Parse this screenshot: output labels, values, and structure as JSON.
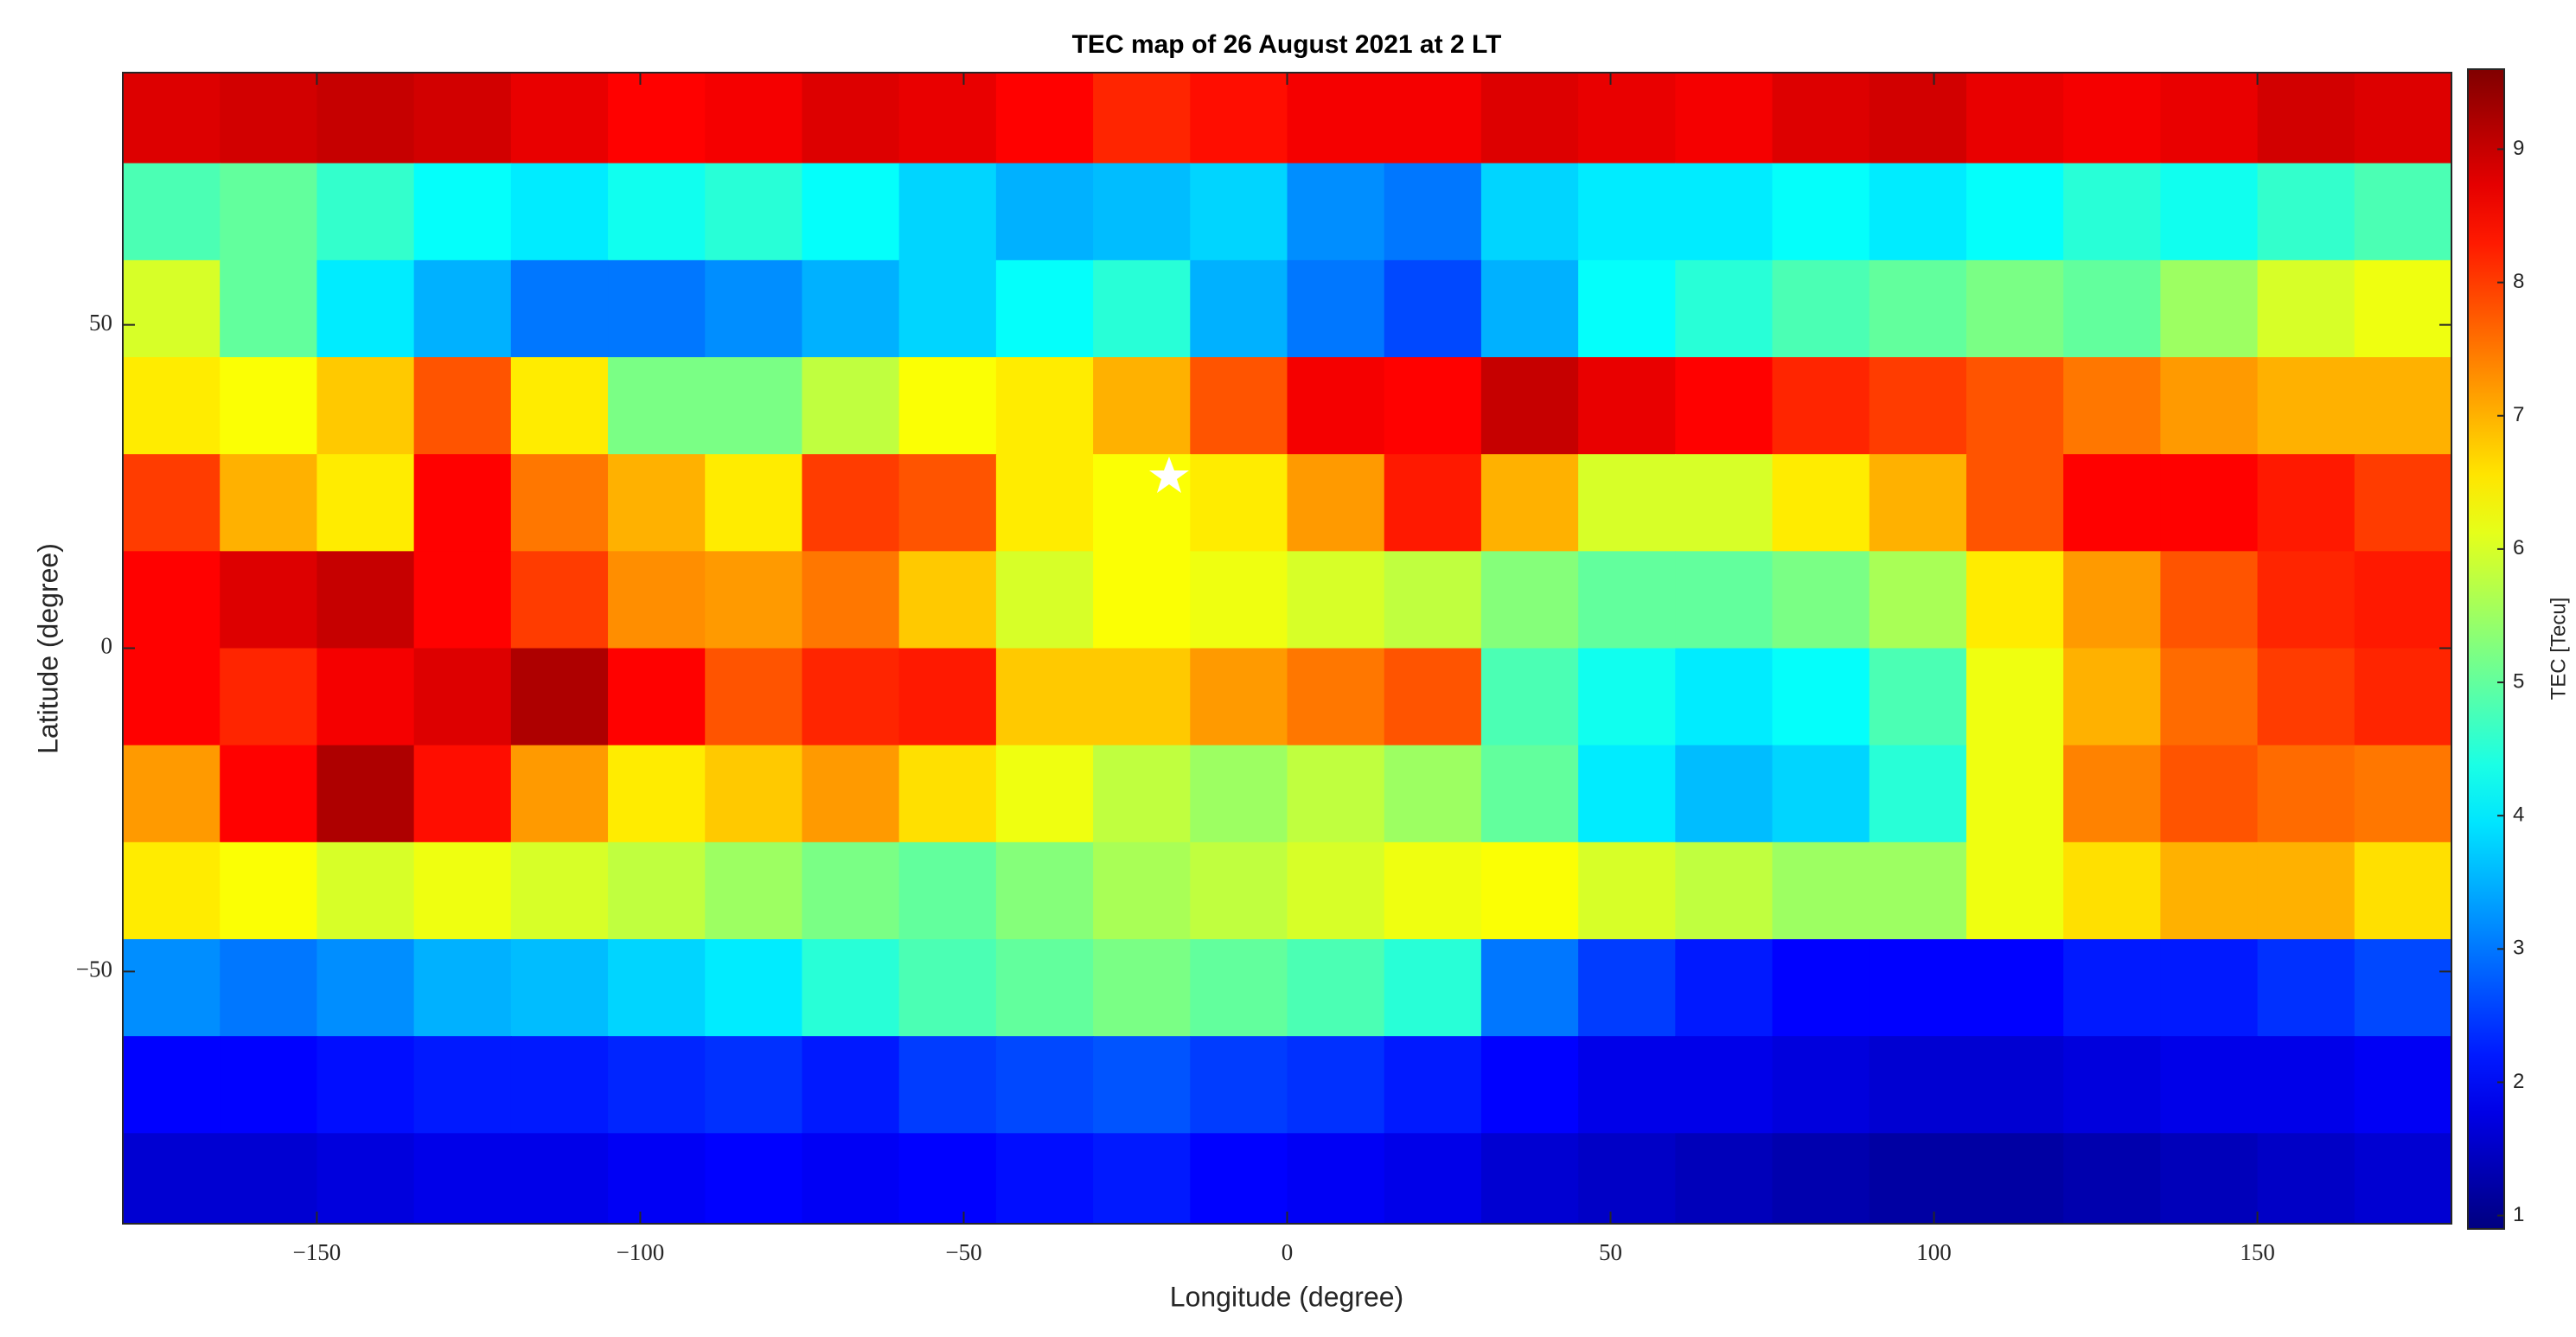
{
  "chart_data": {
    "type": "heatmap",
    "title": "TEC map of 26 August 2021 at 2 LT",
    "x_label": "Longitude (degree)",
    "y_label": "Latitude (degree)",
    "colorbar_label": "TEC [Tecu]",
    "colormap": "jet",
    "xlim": [
      -180,
      180
    ],
    "ylim": [
      -89,
      89
    ],
    "xticks": [
      {
        "value": -150,
        "label": "−150"
      },
      {
        "value": -100,
        "label": "−100"
      },
      {
        "value": -50,
        "label": "−50"
      },
      0,
      50,
      100,
      150
    ],
    "yticks": [
      {
        "value": -50,
        "label": "−50"
      },
      0,
      50
    ],
    "clim": [
      0.9,
      9.6
    ],
    "cticks": [
      1,
      2,
      3,
      4,
      5,
      6,
      7,
      8,
      9
    ],
    "x": [
      -172.5,
      -157.5,
      -142.5,
      -127.5,
      -112.5,
      -97.5,
      -82.5,
      -67.5,
      -52.5,
      -37.5,
      -22.5,
      -7.5,
      7.5,
      22.5,
      37.5,
      52.5,
      67.5,
      82.5,
      97.5,
      112.5,
      127.5,
      142.5,
      157.5,
      172.5
    ],
    "y": [
      82.5,
      67.5,
      52.5,
      37.5,
      22.5,
      7.5,
      -7.5,
      -22.5,
      -37.5,
      -52.5,
      -67.5,
      -82.5
    ],
    "z": [
      [
        8.8,
        8.9,
        9.0,
        8.9,
        8.7,
        8.5,
        8.6,
        8.8,
        8.7,
        8.5,
        8.2,
        8.4,
        8.6,
        8.6,
        8.8,
        8.7,
        8.6,
        8.8,
        8.9,
        8.7,
        8.6,
        8.7,
        8.9,
        8.8
      ],
      [
        4.8,
        5.0,
        4.6,
        4.2,
        4.0,
        4.3,
        4.5,
        4.2,
        3.8,
        3.5,
        3.6,
        3.8,
        3.2,
        3.0,
        3.8,
        4.0,
        4.0,
        4.2,
        4.0,
        4.2,
        4.5,
        4.3,
        4.6,
        4.8
      ],
      [
        6.0,
        5.0,
        4.0,
        3.5,
        3.0,
        3.0,
        3.2,
        3.5,
        3.8,
        4.2,
        4.5,
        3.5,
        3.0,
        2.6,
        3.5,
        4.2,
        4.5,
        4.8,
        5.0,
        5.2,
        5.0,
        5.5,
        6.0,
        6.2
      ],
      [
        6.5,
        6.3,
        6.8,
        7.8,
        6.5,
        5.2,
        5.2,
        5.8,
        6.3,
        6.5,
        7.0,
        7.8,
        8.6,
        8.5,
        9.0,
        8.7,
        8.5,
        8.2,
        8.0,
        7.8,
        7.5,
        7.2,
        7.0,
        7.0
      ],
      [
        8.0,
        7.0,
        6.5,
        8.5,
        7.5,
        7.0,
        6.5,
        8.0,
        7.8,
        6.5,
        6.3,
        6.5,
        7.2,
        8.3,
        7.0,
        6.0,
        6.0,
        6.5,
        7.0,
        7.8,
        8.5,
        8.5,
        8.3,
        8.0
      ],
      [
        8.5,
        8.8,
        9.0,
        8.5,
        8.0,
        7.3,
        7.2,
        7.5,
        6.8,
        6.0,
        6.3,
        6.2,
        6.0,
        5.8,
        5.3,
        5.0,
        5.0,
        5.2,
        5.6,
        6.5,
        7.2,
        7.8,
        8.2,
        8.3
      ],
      [
        8.5,
        8.2,
        8.6,
        8.8,
        9.2,
        8.5,
        7.8,
        8.2,
        8.3,
        6.8,
        6.8,
        7.2,
        7.5,
        7.8,
        4.8,
        4.3,
        4.0,
        4.2,
        4.8,
        6.2,
        7.0,
        7.6,
        8.0,
        8.2
      ],
      [
        7.2,
        8.5,
        9.2,
        8.4,
        7.2,
        6.5,
        6.8,
        7.2,
        6.6,
        6.2,
        5.8,
        5.5,
        5.8,
        5.5,
        5.0,
        4.0,
        3.6,
        3.8,
        4.5,
        6.2,
        7.4,
        7.8,
        7.6,
        7.5
      ],
      [
        6.5,
        6.3,
        6.0,
        6.2,
        6.0,
        5.8,
        5.5,
        5.2,
        5.0,
        5.3,
        5.6,
        5.8,
        6.0,
        6.2,
        6.3,
        6.0,
        5.8,
        5.5,
        5.5,
        6.2,
        6.6,
        7.0,
        7.0,
        6.6
      ],
      [
        3.2,
        3.0,
        3.2,
        3.5,
        3.6,
        3.8,
        4.0,
        4.5,
        4.8,
        5.0,
        5.2,
        5.0,
        4.8,
        4.5,
        3.0,
        2.5,
        2.2,
        2.0,
        2.0,
        2.0,
        2.2,
        2.2,
        2.4,
        2.6
      ],
      [
        2.0,
        2.0,
        2.1,
        2.2,
        2.2,
        2.3,
        2.4,
        2.2,
        2.5,
        2.6,
        2.7,
        2.5,
        2.4,
        2.2,
        2.0,
        1.8,
        1.8,
        1.7,
        1.6,
        1.6,
        1.7,
        1.8,
        1.8,
        1.9
      ],
      [
        1.6,
        1.6,
        1.7,
        1.8,
        1.8,
        1.9,
        2.0,
        1.9,
        2.0,
        2.1,
        2.2,
        2.0,
        1.9,
        1.8,
        1.6,
        1.5,
        1.4,
        1.3,
        1.2,
        1.2,
        1.3,
        1.4,
        1.5,
        1.6
      ]
    ]
  }
}
